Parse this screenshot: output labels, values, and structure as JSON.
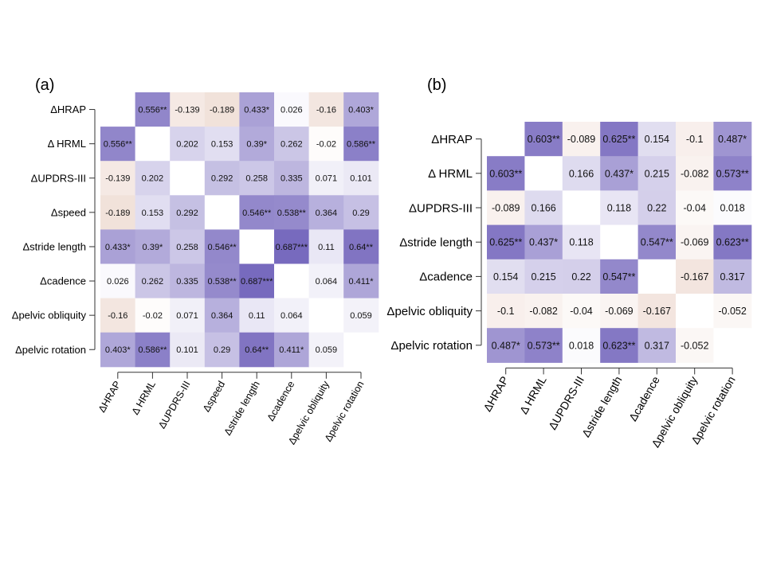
{
  "chart_data": [
    {
      "type": "heatmap",
      "panel_label": "(a)",
      "row_labels": [
        "ΔHRAP",
        "Δ HRML",
        "ΔUPDRS-III",
        "Δspeed",
        "Δstride length",
        "Δcadence",
        "Δpelvic obliquity",
        "Δpelvic rotation"
      ],
      "col_labels": [
        "ΔHRAP",
        "Δ HRML",
        "ΔUPDRS-III",
        "Δspeed",
        "Δstride length",
        "Δcadence",
        "Δpelvic obliquity",
        "Δpelvic rotation"
      ],
      "values": [
        [
          null,
          0.556,
          -0.139,
          -0.189,
          0.433,
          0.026,
          -0.16,
          0.403
        ],
        [
          0.556,
          null,
          0.202,
          0.153,
          0.39,
          0.262,
          -0.02,
          0.586
        ],
        [
          -0.139,
          0.202,
          null,
          0.292,
          0.258,
          0.335,
          0.071,
          0.101
        ],
        [
          -0.189,
          0.153,
          0.292,
          null,
          0.546,
          0.538,
          0.364,
          0.29
        ],
        [
          0.433,
          0.39,
          0.258,
          0.546,
          null,
          0.687,
          0.11,
          0.64
        ],
        [
          0.026,
          0.262,
          0.335,
          0.538,
          0.687,
          null,
          0.064,
          0.411
        ],
        [
          -0.16,
          -0.02,
          0.071,
          0.364,
          0.11,
          0.064,
          null,
          0.059
        ],
        [
          0.403,
          0.586,
          0.101,
          0.29,
          0.64,
          0.411,
          0.059,
          null
        ]
      ],
      "cell_labels": [
        [
          "",
          "0.556**",
          "-0.139",
          "-0.189",
          "0.433*",
          "0.026",
          "-0.16",
          "0.403*"
        ],
        [
          "0.556**",
          "",
          "0.202",
          "0.153",
          "0.39*",
          "0.262",
          "-0.02",
          "0.586**"
        ],
        [
          "-0.139",
          "0.202",
          "",
          "0.292",
          "0.258",
          "0.335",
          "0.071",
          "0.101"
        ],
        [
          "-0.189",
          "0.153",
          "0.292",
          "",
          "0.546**",
          "0.538**",
          "0.364",
          "0.29"
        ],
        [
          "0.433*",
          "0.39*",
          "0.258",
          "0.546**",
          "",
          "0.687***",
          "0.11",
          "0.64**"
        ],
        [
          "0.026",
          "0.262",
          "0.335",
          "0.538**",
          "0.687***",
          "",
          "0.064",
          "0.411*"
        ],
        [
          "-0.16",
          "-0.02",
          "0.071",
          "0.364",
          "0.11",
          "0.064",
          "",
          "0.059"
        ],
        [
          "0.403*",
          "0.586**",
          "0.101",
          "0.29",
          "0.64**",
          "0.411*",
          "0.059",
          ""
        ]
      ],
      "colors": {
        "positive": "#6b5cb8",
        "negative": "#c98a6e",
        "empty": "#ffffff"
      },
      "color_range": [
        -1,
        1
      ]
    },
    {
      "type": "heatmap",
      "panel_label": "(b)",
      "row_labels": [
        "ΔHRAP",
        "Δ HRML",
        "ΔUPDRS-III",
        "Δstride length",
        "Δcadence",
        "Δpelvic obliquity",
        "Δpelvic rotation"
      ],
      "col_labels": [
        "ΔHRAP",
        "Δ HRML",
        "ΔUPDRS-III",
        "Δstride length",
        "Δcadence",
        "Δpelvic obliquity",
        "Δpelvic rotation"
      ],
      "values": [
        [
          null,
          0.603,
          -0.089,
          0.625,
          0.154,
          -0.1,
          0.487
        ],
        [
          0.603,
          null,
          0.166,
          0.437,
          0.215,
          -0.082,
          0.573
        ],
        [
          -0.089,
          0.166,
          null,
          0.118,
          0.22,
          -0.04,
          0.018
        ],
        [
          0.625,
          0.437,
          0.118,
          null,
          0.547,
          -0.069,
          0.623
        ],
        [
          0.154,
          0.215,
          0.22,
          0.547,
          null,
          -0.167,
          0.317
        ],
        [
          -0.1,
          -0.082,
          -0.04,
          -0.069,
          -0.167,
          null,
          -0.052
        ],
        [
          0.487,
          0.573,
          0.018,
          0.623,
          0.317,
          -0.052,
          null
        ]
      ],
      "cell_labels": [
        [
          "",
          "0.603**",
          "-0.089",
          "0.625**",
          "0.154",
          "-0.1",
          "0.487*"
        ],
        [
          "0.603**",
          "",
          "0.166",
          "0.437*",
          "0.215",
          "-0.082",
          "0.573**"
        ],
        [
          "-0.089",
          "0.166",
          "",
          "0.118",
          "0.22",
          "-0.04",
          "0.018"
        ],
        [
          "0.625**",
          "0.437*",
          "0.118",
          "",
          "0.547**",
          "-0.069",
          "0.623**"
        ],
        [
          "0.154",
          "0.215",
          "0.22",
          "0.547**",
          "",
          "-0.167",
          "0.317"
        ],
        [
          "-0.1",
          "-0.082",
          "-0.04",
          "-0.069",
          "-0.167",
          "",
          "-0.052"
        ],
        [
          "0.487*",
          "0.573**",
          "0.018",
          "0.623**",
          "0.317",
          "-0.052",
          ""
        ]
      ],
      "colors": {
        "positive": "#6b5cb8",
        "negative": "#c98a6e",
        "empty": "#ffffff"
      },
      "color_range": [
        -1,
        1
      ]
    }
  ]
}
